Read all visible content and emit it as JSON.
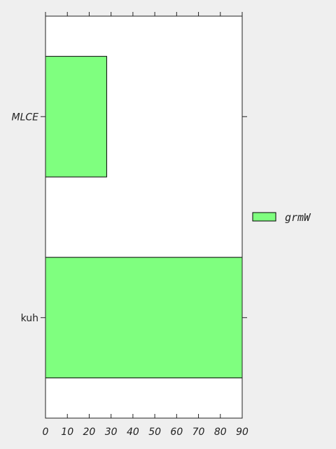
{
  "chart_data": {
    "type": "bar",
    "orientation": "horizontal",
    "categories": [
      "MLCE",
      "kuh"
    ],
    "category_label_italic": [
      true,
      false
    ],
    "series": [
      {
        "name": "grmW",
        "values": [
          28,
          90
        ]
      }
    ],
    "xlim": [
      0,
      90
    ],
    "xticks": [
      0,
      10,
      20,
      30,
      40,
      50,
      60,
      70,
      80,
      90
    ],
    "xtick_labels": [
      "0",
      "10",
      "20",
      "30",
      "40",
      "50",
      "60",
      "70",
      "80",
      "90"
    ],
    "title": "",
    "xlabel": "",
    "ylabel": "",
    "grid": false,
    "legend": {
      "placement": "right, outside plot",
      "entries": [
        "grmW"
      ]
    },
    "colors": {
      "bar_fill": "#7fff7f",
      "bar_edge": "#000000",
      "axes_bg": "#ffffff",
      "figure_bg": "#efefef"
    }
  }
}
